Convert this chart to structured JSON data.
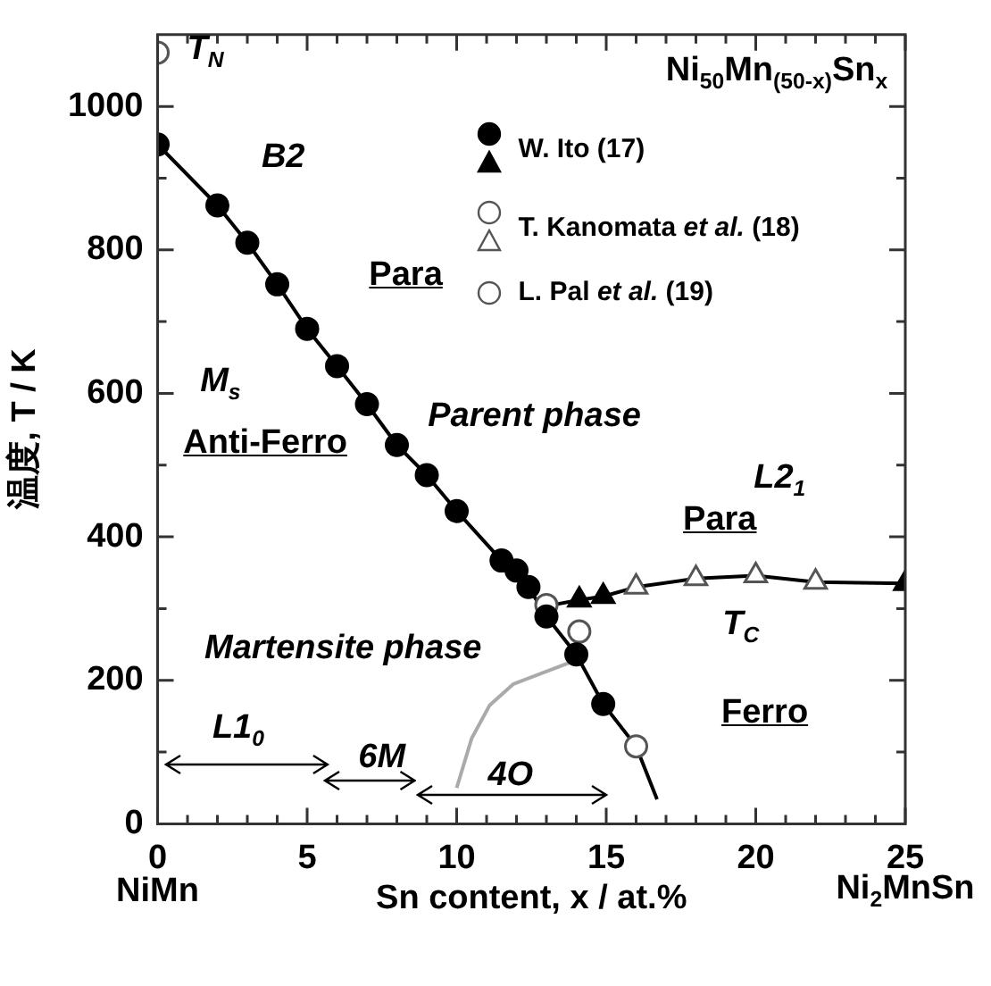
{
  "chart_data": {
    "type": "scatter",
    "title": "Ni$_{50}$Mn$_{(50-x)}$Sn$_{x}$",
    "xlabel": "Sn content, x / at.%",
    "ylabel": "温度, T / K",
    "xlim": [
      0,
      25
    ],
    "ylim": [
      0,
      1100
    ],
    "xticks": [
      0,
      {
        "value": 1,
        "label": null
      },
      {
        "value": 2,
        "label": null
      },
      {
        "value": 3,
        "label": null
      },
      {
        "value": 4,
        "label": null
      },
      5,
      {
        "value": 6,
        "label": null
      },
      {
        "value": 7,
        "label": null
      },
      {
        "value": 8,
        "label": null
      },
      {
        "value": 9,
        "label": null
      },
      10,
      {
        "value": 11,
        "label": null
      },
      {
        "value": 12,
        "label": null
      },
      {
        "value": 13,
        "label": null
      },
      {
        "value": 14,
        "label": null
      },
      15,
      {
        "value": 16,
        "label": null
      },
      {
        "value": 17,
        "label": null
      },
      {
        "value": 18,
        "label": null
      },
      {
        "value": 19,
        "label": null
      },
      20,
      {
        "value": 21,
        "label": null
      },
      {
        "value": 22,
        "label": null
      },
      {
        "value": 23,
        "label": null
      },
      {
        "value": 24,
        "label": null
      },
      25
    ],
    "yticks": [
      0,
      {
        "value": 100,
        "label": null
      },
      200,
      {
        "value": 300,
        "label": null
      },
      400,
      {
        "value": 500,
        "label": null
      },
      600,
      {
        "value": 700,
        "label": null
      },
      800,
      {
        "value": 900,
        "label": null
      },
      1000
    ],
    "grid": false,
    "legend": "top right",
    "series": [
      {
        "type": "line",
        "color": "#000000",
        "marker": "none",
        "x": [
          0,
          2,
          3,
          4,
          5,
          6,
          7,
          8,
          9,
          10,
          11.5,
          12,
          12.4,
          13,
          14,
          14.9,
          16,
          16.7
        ],
        "values": [
          947,
          862,
          810,
          752,
          690,
          638,
          585,
          528,
          486,
          436,
          367,
          353,
          330,
          289,
          236,
          167,
          108,
          34
        ]
      },
      {
        "type": "line",
        "color": "#000000",
        "marker": "none",
        "x": [
          13.2,
          14.1,
          14.9,
          16,
          18,
          20,
          22,
          25
        ],
        "values": [
          305,
          312,
          317,
          330,
          342,
          346,
          337,
          335
        ]
      },
      {
        "type": "line",
        "color": "#aaaaaa",
        "marker": "none",
        "x": [
          10,
          10.5,
          11.1,
          11.9,
          13.8
        ],
        "values": [
          50,
          119,
          165,
          195,
          225
        ]
      },
      {
        "name": "W. Ito (17)",
        "color": "#000000",
        "marker": "circle",
        "x": [
          0,
          2,
          3,
          4,
          5,
          6,
          7,
          8,
          9,
          10,
          11.5,
          12,
          12.4,
          13,
          14,
          14.9
        ],
        "values": [
          947,
          862,
          810,
          752,
          690,
          638,
          585,
          528,
          486,
          436,
          367,
          353,
          330,
          289,
          236,
          167
        ]
      },
      {
        "color": "#000000",
        "marker": "triangle",
        "x": [
          14.1,
          14.9,
          25
        ],
        "values": [
          312,
          317,
          335
        ]
      },
      {
        "name": "T. Kanomata et al. (18)",
        "color": "#ffffff",
        "marker": "circle",
        "x": [
          13,
          14.1,
          16
        ],
        "values": [
          305,
          268,
          108
        ]
      },
      {
        "color": "#ffffff",
        "marker": "triangle",
        "x": [
          16,
          18,
          20,
          22
        ],
        "values": [
          330,
          342,
          346,
          337
        ]
      },
      {
        "name": "L. Pal et al. (19)",
        "color": "#ffffff",
        "marker": "circle",
        "x": [
          0
        ],
        "values": [
          1075
        ]
      }
    ],
    "annotations": [
      "T$_{N}$",
      "B2",
      "Para",
      "M$_{s}$",
      "Anti-Ferro",
      "Parent phase",
      "L2$_{1}$",
      "Para",
      "T$_{C}$",
      "Martensite phase",
      "Ferro",
      "L1$_{0}$",
      "6M",
      "4O",
      "NiMn",
      "Ni$_{2}$MnSn"
    ]
  }
}
